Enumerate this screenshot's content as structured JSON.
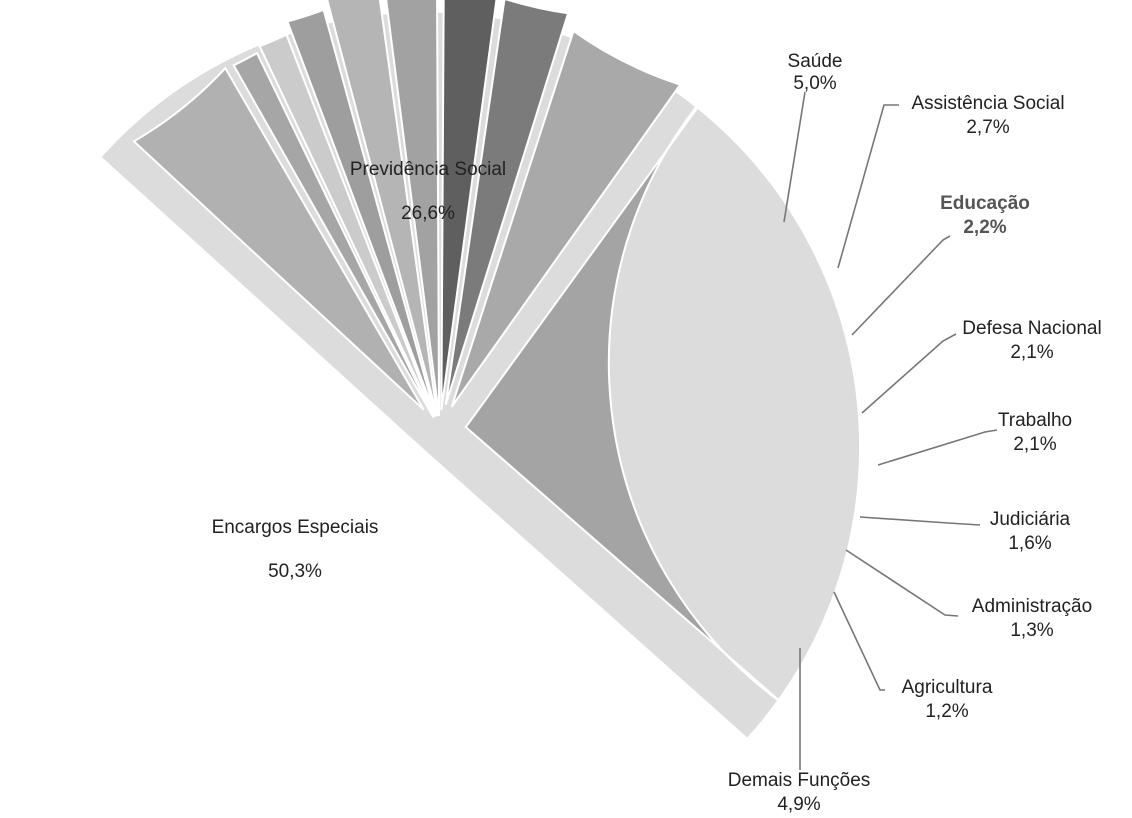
{
  "chart_data": {
    "type": "pie",
    "title": "",
    "unit": "%",
    "slices": [
      {
        "label": "Encargos Especiais",
        "value": 50.3,
        "value_label": "50,3%",
        "color": "#dcdcdc",
        "bold": false
      },
      {
        "label": "Previdência Social",
        "value": 26.6,
        "value_label": "26,6%",
        "color": "#a4a4a4",
        "bold": false
      },
      {
        "label": "Saúde",
        "value": 5.0,
        "value_label": "5,0%",
        "color": "#a9a9a9",
        "bold": false
      },
      {
        "label": "Assistência Social",
        "value": 2.7,
        "value_label": "2,7%",
        "color": "#7b7b7b",
        "bold": false
      },
      {
        "label": "Educação",
        "value": 2.2,
        "value_label": "2,2%",
        "color": "#5f5f5f",
        "bold": true
      },
      {
        "label": "Defesa Nacional",
        "value": 2.1,
        "value_label": "2,1%",
        "color": "#a2a2a2",
        "bold": false
      },
      {
        "label": "Trabalho",
        "value": 2.1,
        "value_label": "2,1%",
        "color": "#b5b5b5",
        "bold": false
      },
      {
        "label": "Judiciária",
        "value": 1.6,
        "value_label": "1,6%",
        "color": "#9e9e9e",
        "bold": false
      },
      {
        "label": "Administração",
        "value": 1.3,
        "value_label": "1,3%",
        "color": "#cbcbcb",
        "bold": false
      },
      {
        "label": "Agricultura",
        "value": 1.2,
        "value_label": "1,2%",
        "color": "#a6a6a6",
        "bold": false
      },
      {
        "label": "Demais Funções",
        "value": 4.9,
        "value_label": "4,9%",
        "color": "#b1b1b1",
        "bold": false
      }
    ]
  }
}
